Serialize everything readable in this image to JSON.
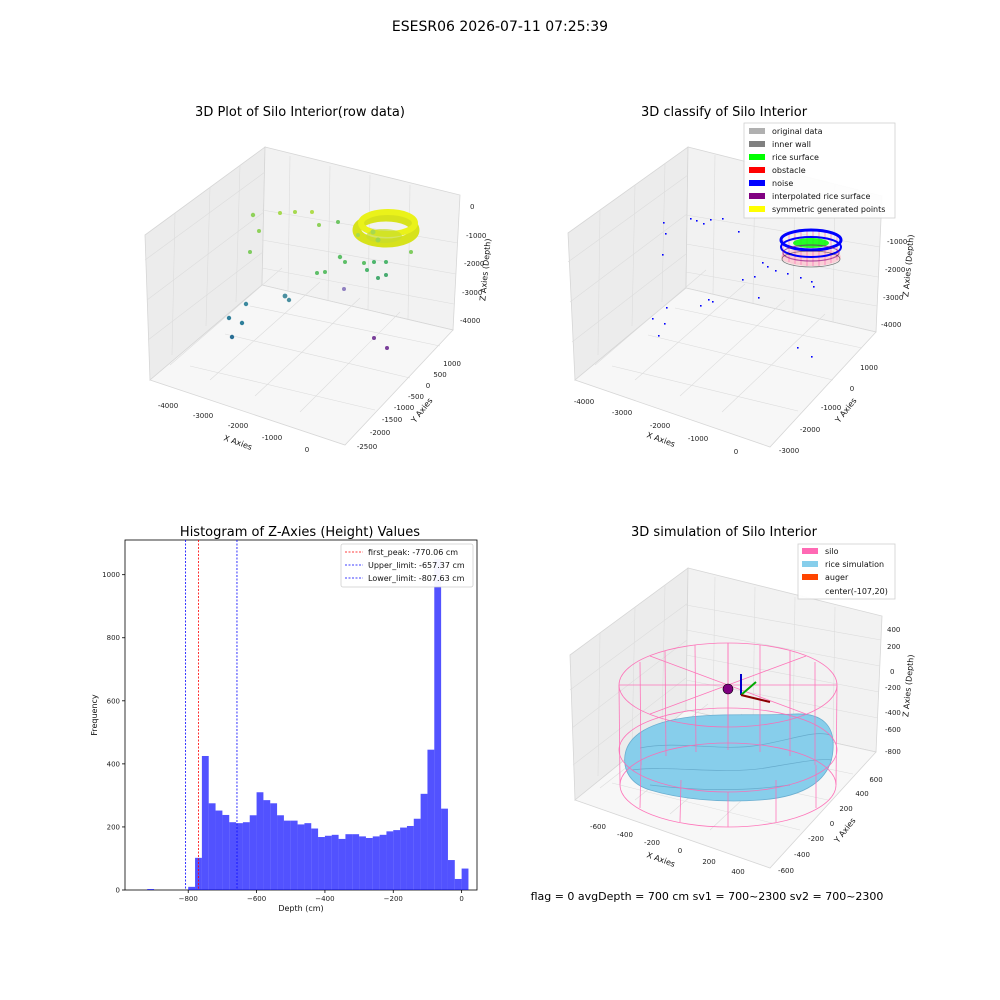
{
  "figure": {
    "suptitle": "ESESR06 2026-07-11 07:25:39",
    "status_text": "flag = 0     avgDepth = 700 cm  sv1 = 700~2300  sv2 = 700~2300"
  },
  "chart_data": [
    {
      "type": "scatter",
      "projection": "3d",
      "title": "3D Plot of Silo Interior(row data)",
      "xlabel": "X Axies",
      "ylabel": "Y Axies",
      "zlabel": "Z Axies (Depth)",
      "x_ticks": [
        "-4000",
        "-3000",
        "-2000",
        "-1000",
        "0"
      ],
      "y_ticks": [
        "1000",
        "500",
        "0",
        "-500",
        "-1000",
        "-1500",
        "-2000",
        "-2500"
      ],
      "z_ticks": [
        "0",
        "-1000",
        "-2000",
        "-3000",
        "-4000"
      ],
      "colormap": "viridis-like (purple deep → yellow shallow)",
      "grid": true
    },
    {
      "type": "scatter",
      "projection": "3d",
      "title": "3D classify of Silo Interior",
      "xlabel": "X Axies",
      "ylabel": "Y Axies",
      "zlabel": "Z Axies (Depth)",
      "x_ticks": [
        "-4000",
        "-3000",
        "-2000",
        "-1000",
        "0"
      ],
      "y_ticks": [
        "1000",
        "0",
        "-1000",
        "-2000",
        "-3000"
      ],
      "z_ticks": [
        "-1000",
        "-2000",
        "-3000",
        "-4000"
      ],
      "legend_position": "top-right",
      "legend": [
        {
          "label": "original data",
          "color": "#b0b0b0"
        },
        {
          "label": "inner wall",
          "color": "#808080"
        },
        {
          "label": "rice surface",
          "color": "#00ff00"
        },
        {
          "label": "obstacle",
          "color": "#ff0000"
        },
        {
          "label": "noise",
          "color": "#0000ff"
        },
        {
          "label": "interpolated rice surface",
          "color": "#800080"
        },
        {
          "label": "symmetric generated points",
          "color": "#ffff00"
        }
      ],
      "grid": true
    },
    {
      "type": "bar",
      "title": "Histogram of Z-Axies (Height) Values",
      "xlabel": "Depth (cm)",
      "ylabel": "Frequency",
      "xlim": [
        -985,
        45
      ],
      "ylim": [
        0,
        1110
      ],
      "x_ticks": [
        -800,
        -600,
        -400,
        -200,
        0
      ],
      "x_tick_labels": [
        "−800",
        "−600",
        "−400",
        "−200",
        "0"
      ],
      "y_ticks": [
        0,
        200,
        400,
        600,
        800,
        1000
      ],
      "bin_width": 20,
      "bins_start": [
        -920,
        -800,
        -780,
        -760,
        -740,
        -720,
        -700,
        -680,
        -660,
        -640,
        -620,
        -600,
        -580,
        -560,
        -540,
        -520,
        -500,
        -480,
        -460,
        -440,
        -420,
        -400,
        -380,
        -360,
        -340,
        -320,
        -300,
        -280,
        -260,
        -240,
        -220,
        -200,
        -180,
        -160,
        -140,
        -120,
        -100,
        -80,
        -60,
        -40,
        -20,
        0
      ],
      "values": [
        3,
        10,
        102,
        425,
        275,
        252,
        238,
        215,
        212,
        215,
        237,
        310,
        285,
        275,
        237,
        220,
        220,
        208,
        212,
        195,
        168,
        172,
        175,
        162,
        177,
        177,
        170,
        165,
        170,
        175,
        186,
        190,
        198,
        203,
        226,
        305,
        445,
        1050,
        258,
        95,
        35,
        68
      ],
      "bar_color": "#0000ff",
      "vlines": [
        {
          "label": "first_peak: -770.06 cm",
          "x": -770.06,
          "color": "#ff0000"
        },
        {
          "label": "Upper_limit: -657.37 cm",
          "x": -657.37,
          "color": "#0000ff"
        },
        {
          "label": "Lower_limit: -807.63 cm",
          "x": -807.63,
          "color": "#0000ff"
        }
      ],
      "legend_position": "top-right"
    },
    {
      "type": "surface",
      "projection": "3d",
      "title": "3D simulation of Silo Interior",
      "xlabel": "X Axies",
      "ylabel": "Y Axies",
      "zlabel": "Z Axies (Depth)",
      "x_ticks": [
        "-600",
        "-400",
        "-200",
        "0",
        "200",
        "400"
      ],
      "y_ticks": [
        "600",
        "400",
        "200",
        "0",
        "-200",
        "-400",
        "-600"
      ],
      "z_ticks": [
        "400",
        "200",
        "0",
        "-200",
        "-400",
        "-600",
        "-800"
      ],
      "legend_position": "top-right",
      "legend": [
        {
          "label": "silo",
          "color": "#ff69b4"
        },
        {
          "label": "rice simulation",
          "color": "#87ceeb"
        },
        {
          "label": "auger",
          "color": "#ff4500"
        },
        {
          "label": "center(-107,20)",
          "color": ""
        }
      ],
      "grid": true
    }
  ]
}
